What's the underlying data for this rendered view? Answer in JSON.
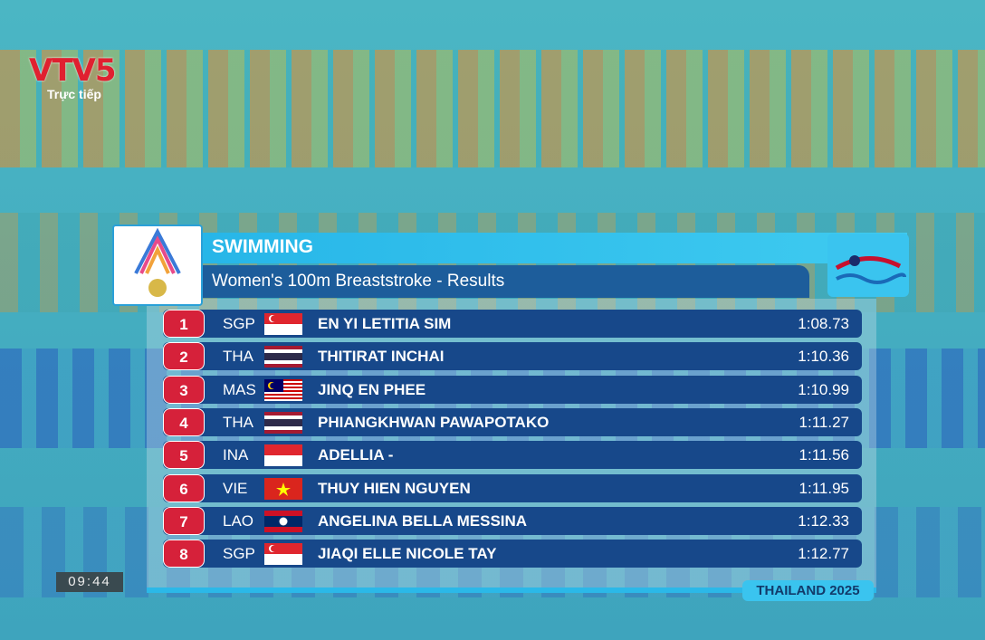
{
  "channel": {
    "logo": "VTV5",
    "status": "Trực tiếp"
  },
  "clock": "09:44",
  "header": {
    "sport": "SWIMMING",
    "event": "Women's 100m Breaststroke - Results"
  },
  "table": {
    "rows": [
      [
        "1",
        "SGP",
        "EN YI LETITIA SIM",
        "1:08.73"
      ],
      [
        "2",
        "THA",
        "THITIRAT INCHAI",
        "1:10.36"
      ],
      [
        "3",
        "MAS",
        "JINQ EN PHEE",
        "1:10.99"
      ],
      [
        "4",
        "THA",
        "PHIANGKHWAN PAWAPOTAKO",
        "1:11.27"
      ],
      [
        "5",
        "INA",
        "ADELLIA -",
        "1:11.56"
      ],
      [
        "6",
        "VIE",
        "THUY HIEN NGUYEN",
        "1:11.95"
      ],
      [
        "7",
        "LAO",
        "ANGELINA BELLA MESSINA",
        "1:12.33"
      ],
      [
        "8",
        "SGP",
        "JIAQI ELLE NICOLE TAY",
        "1:12.77"
      ]
    ]
  },
  "footer": "THAILAND 2025"
}
